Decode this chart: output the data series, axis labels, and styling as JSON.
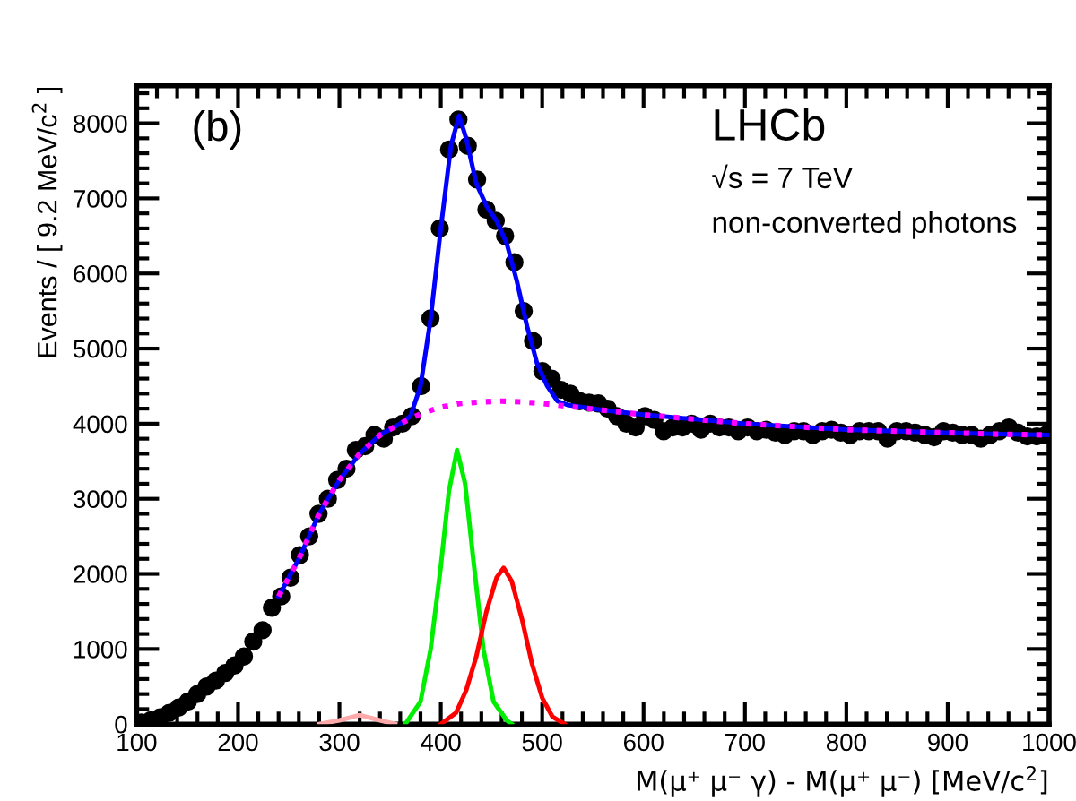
{
  "chart_data": {
    "type": "scatter",
    "xlabel": "M(μ⁺ μ⁻ γ) - M(μ⁺ μ⁻) [MeV/c$^{2}$]",
    "ylabel": "Events / [ 9.2 MeV/c$^{2}$ ]",
    "annotations": [
      "(b)",
      "LHCb",
      "√s = 7 TeV",
      "non-converted photons"
    ],
    "xlim": [
      100,
      1000
    ],
    "xticks": [
      100,
      200,
      300,
      400,
      500,
      600,
      700,
      800,
      900,
      1000
    ],
    "ylim": [
      0,
      8500
    ],
    "yticks": [
      0,
      1000,
      2000,
      3000,
      4000,
      5000,
      6000,
      7000,
      8000
    ],
    "grid": false,
    "legend": false,
    "series": [
      {
        "type": "line",
        "color": "#ff00ff",
        "line_style": "dotted",
        "marker": "none",
        "x": [
          240,
          260,
          280,
          300,
          320,
          340,
          360,
          380,
          400,
          420,
          440,
          460,
          480,
          500,
          520,
          560,
          600,
          650,
          700,
          750,
          800,
          850,
          900,
          950,
          1000
        ],
        "values": [
          1700,
          2200,
          2800,
          3250,
          3600,
          3850,
          4000,
          4130,
          4220,
          4270,
          4290,
          4300,
          4290,
          4270,
          4240,
          4180,
          4120,
          4060,
          4000,
          3960,
          3920,
          3900,
          3880,
          3860,
          3850
        ]
      },
      {
        "type": "line",
        "color": "#ffaaaa",
        "line_style": "solid",
        "marker": "none",
        "x": [
          280,
          300,
          320,
          340,
          355
        ],
        "values": [
          0,
          50,
          120,
          50,
          0
        ]
      },
      {
        "type": "line",
        "color": "#00ee00",
        "line_style": "solid",
        "marker": "none",
        "x": [
          365,
          380,
          390,
          400,
          408,
          416,
          424,
          432,
          442,
          452,
          465,
          470
        ],
        "values": [
          0,
          300,
          1000,
          2100,
          3100,
          3650,
          3200,
          2200,
          1000,
          300,
          50,
          0
        ]
      },
      {
        "type": "line",
        "color": "#ff0000",
        "line_style": "solid",
        "marker": "none",
        "x": [
          400,
          415,
          425,
          435,
          445,
          455,
          462,
          470,
          480,
          490,
          500,
          510,
          522
        ],
        "values": [
          0,
          150,
          450,
          900,
          1500,
          1950,
          2080,
          1900,
          1400,
          800,
          350,
          100,
          0
        ]
      },
      {
        "type": "line",
        "color": "#0000ff",
        "line_style": "solid",
        "marker": "none",
        "x": [
          240,
          260,
          280,
          300,
          320,
          340,
          360,
          370,
          380,
          390,
          400,
          410,
          418,
          425,
          435,
          445,
          455,
          465,
          475,
          485,
          495,
          505,
          515,
          525,
          560,
          600,
          650,
          700,
          750,
          800,
          850,
          900,
          950,
          1000
        ],
        "values": [
          1700,
          2200,
          2800,
          3250,
          3600,
          3850,
          4000,
          4100,
          4500,
          5400,
          6600,
          7700,
          8100,
          7800,
          7200,
          6900,
          6700,
          6400,
          5900,
          5300,
          4800,
          4500,
          4300,
          4250,
          4180,
          4120,
          4060,
          4000,
          3960,
          3920,
          3900,
          3880,
          3860,
          3850
        ]
      },
      {
        "color": "#000000",
        "marker": "circle",
        "x": [
          104.6,
          113.8,
          123,
          132.2,
          141.4,
          150.6,
          159.8,
          169,
          178.2,
          187.4,
          196.6,
          205.8,
          215,
          224.2,
          233.4,
          242.6,
          251.8,
          261,
          270.2,
          279.4,
          288.6,
          297.8,
          307,
          316.2,
          325.4,
          334.6,
          343.8,
          353,
          362.2,
          371.4,
          380.6,
          389.8,
          399,
          408.2,
          417.4,
          426.6,
          435.8,
          445,
          454.2,
          463.4,
          472.6,
          481.8,
          491,
          500.2,
          509.4,
          518.6,
          527.8,
          537,
          546.2,
          555.4,
          564.6,
          573.8,
          583,
          592.2,
          601.4,
          610.6,
          619.8,
          629,
          638.2,
          647.4,
          656.6,
          665.8,
          675,
          684.2,
          693.4,
          702.6,
          711.8,
          721,
          730.2,
          739.4,
          748.6,
          757.8,
          767,
          776.2,
          785.4,
          794.6,
          803.8,
          813,
          822.2,
          831.4,
          840.6,
          849.8,
          859,
          868.2,
          877.4,
          886.6,
          895.8,
          905,
          914.2,
          923.4,
          932.6,
          941.8,
          951,
          960.2,
          969.4,
          978.6,
          987.8,
          997
        ],
        "values": [
          20,
          50,
          90,
          150,
          220,
          300,
          400,
          500,
          580,
          680,
          780,
          900,
          1100,
          1250,
          1550,
          1700,
          1950,
          2250,
          2500,
          2800,
          3000,
          3250,
          3400,
          3650,
          3700,
          3850,
          3800,
          3950,
          4000,
          4100,
          4500,
          5400,
          6600,
          7650,
          8050,
          7700,
          7250,
          6850,
          6700,
          6500,
          6150,
          5500,
          5100,
          4700,
          4600,
          4450,
          4400,
          4300,
          4280,
          4270,
          4200,
          4100,
          4000,
          3950,
          4100,
          4050,
          3900,
          3950,
          3950,
          4000,
          3920,
          4000,
          3950,
          3950,
          3900,
          3950,
          3900,
          3920,
          3880,
          3850,
          3900,
          3900,
          3850,
          3900,
          3920,
          3880,
          3850,
          3900,
          3900,
          3900,
          3800,
          3900,
          3900,
          3880,
          3850,
          3820,
          3900,
          3880,
          3850,
          3850,
          3800,
          3850,
          3900,
          3950,
          3880,
          3830,
          3830,
          3850
        ]
      }
    ]
  }
}
